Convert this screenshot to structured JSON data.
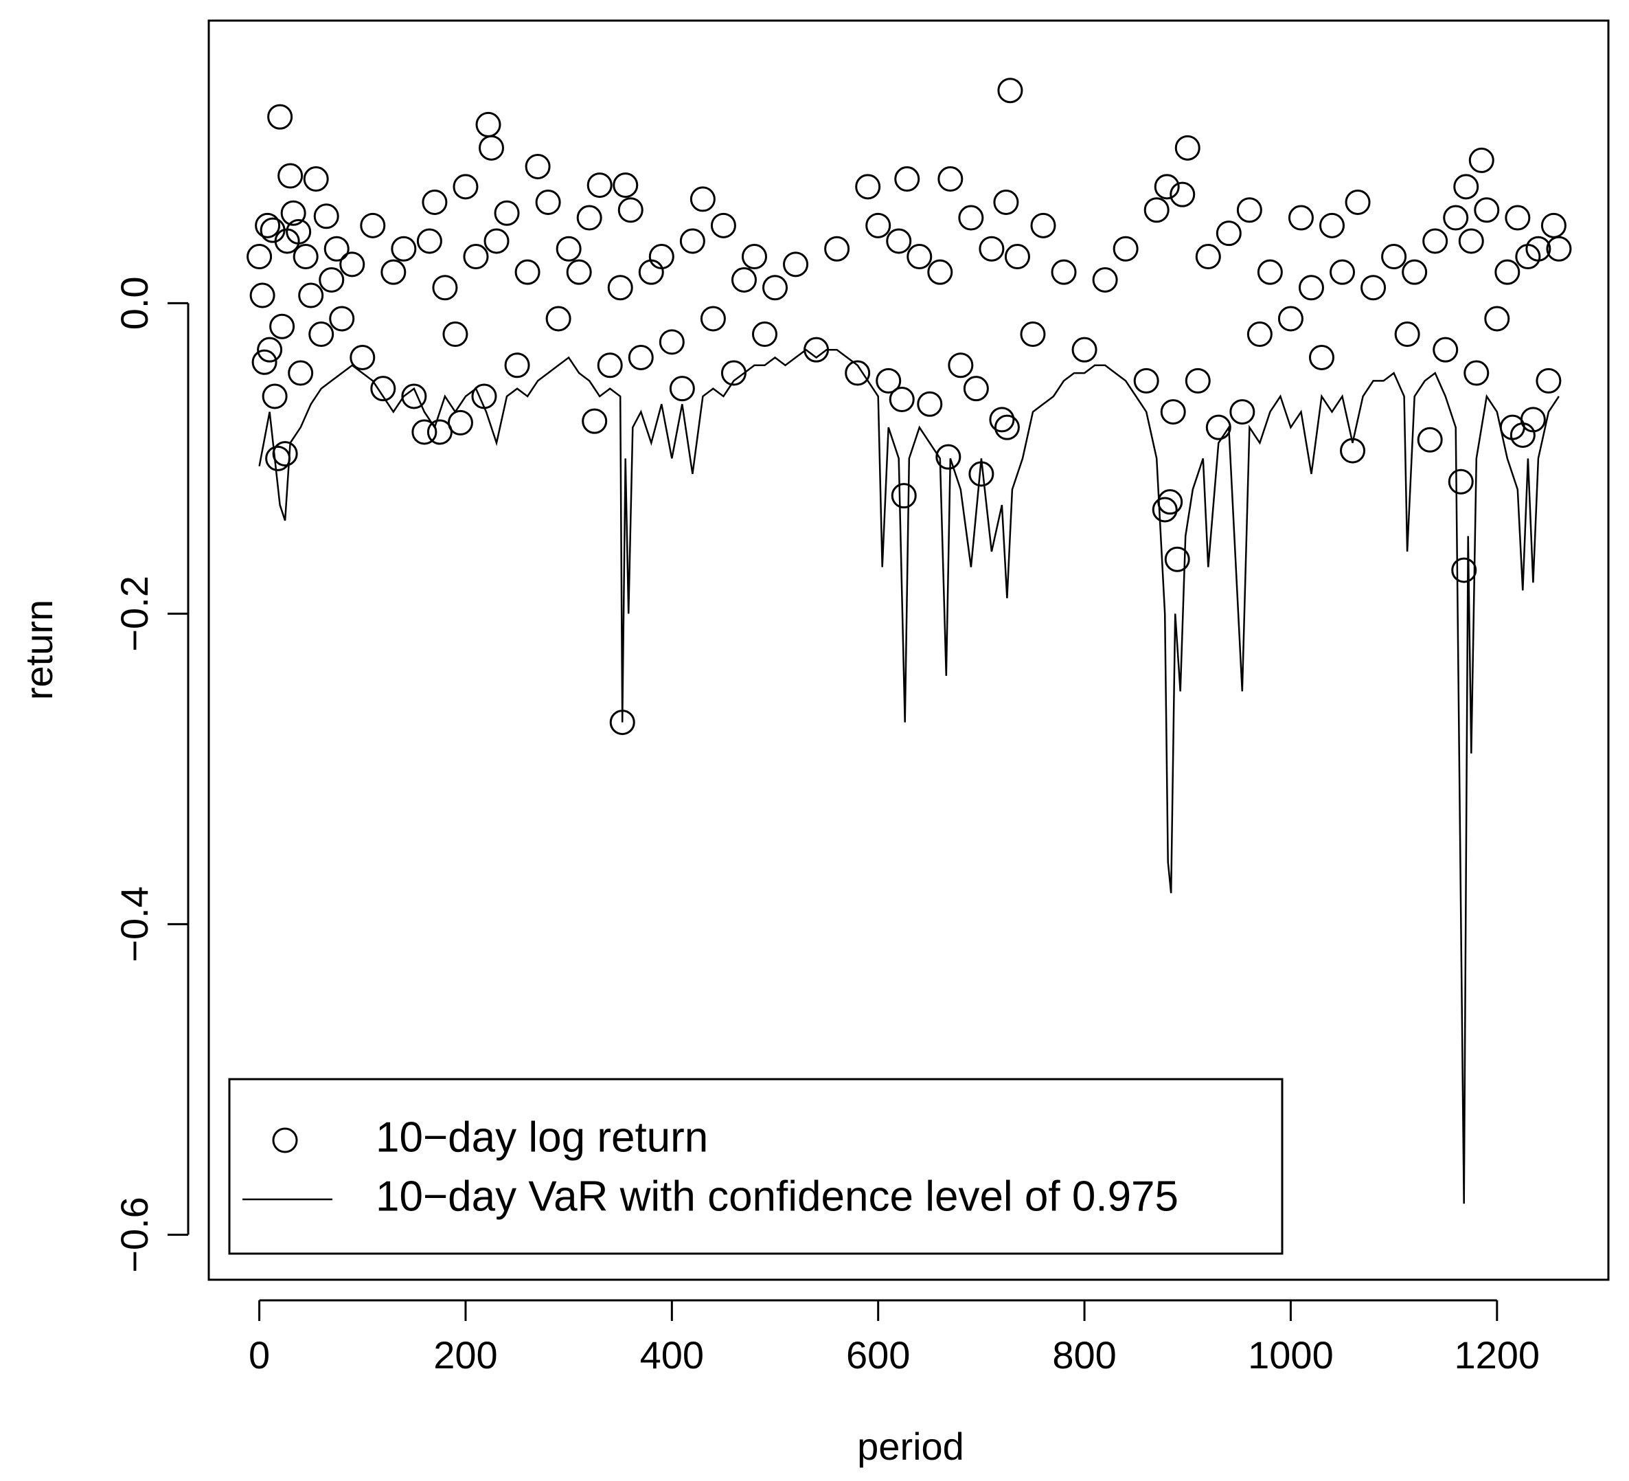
{
  "chart_data": {
    "type": "scatter",
    "xlabel": "period",
    "ylabel": "return",
    "xlim": [
      -49,
      1308
    ],
    "ylim": [
      -0.629,
      0.182
    ],
    "xticks": [
      0,
      200,
      400,
      600,
      800,
      1000,
      1200
    ],
    "yticks": [
      {
        "value": -0.6,
        "label": "−0.6"
      },
      {
        "value": -0.4,
        "label": "−0.4"
      },
      {
        "value": -0.2,
        "label": "−0.2"
      },
      {
        "value": 0,
        "label": "0.0"
      }
    ],
    "legend": "bottomleft",
    "series": [
      {
        "name": "10−day log return",
        "type": "scatter",
        "color": "#000000",
        "x": [
          0,
          3,
          5,
          8,
          10,
          13,
          15,
          18,
          20,
          22,
          25,
          27,
          30,
          33,
          38,
          40,
          45,
          50,
          55,
          60,
          65,
          70,
          75,
          80,
          90,
          100,
          110,
          120,
          130,
          140,
          150,
          160,
          165,
          170,
          175,
          180,
          190,
          195,
          200,
          210,
          218,
          222,
          225,
          230,
          240,
          250,
          260,
          270,
          280,
          290,
          300,
          310,
          320,
          325,
          330,
          340,
          350,
          352,
          355,
          360,
          370,
          380,
          390,
          400,
          410,
          420,
          430,
          440,
          450,
          460,
          470,
          480,
          490,
          500,
          520,
          540,
          560,
          580,
          590,
          600,
          610,
          620,
          623,
          625,
          628,
          640,
          650,
          660,
          668,
          670,
          680,
          690,
          695,
          700,
          710,
          720,
          724,
          725,
          728,
          735,
          750,
          760,
          780,
          800,
          820,
          840,
          860,
          870,
          878,
          880,
          883,
          886,
          890,
          895,
          900,
          910,
          920,
          930,
          940,
          953,
          960,
          970,
          980,
          1000,
          1010,
          1020,
          1030,
          1040,
          1050,
          1060,
          1065,
          1080,
          1100,
          1113,
          1120,
          1135,
          1140,
          1150,
          1160,
          1165,
          1168,
          1170,
          1175,
          1180,
          1185,
          1190,
          1200,
          1210,
          1215,
          1220,
          1225,
          1230,
          1235,
          1240,
          1250,
          1255,
          1260
        ],
        "values": [
          0.03,
          0.005,
          -0.038,
          0.05,
          -0.03,
          0.047,
          -0.06,
          -0.1,
          0.12,
          -0.015,
          -0.097,
          0.04,
          0.082,
          0.058,
          0.046,
          -0.045,
          0.03,
          0.005,
          0.08,
          -0.02,
          0.056,
          0.015,
          0.035,
          -0.01,
          0.025,
          -0.035,
          0.05,
          -0.055,
          0.02,
          0.035,
          -0.06,
          -0.083,
          0.04,
          0.065,
          -0.083,
          0.01,
          -0.02,
          -0.077,
          0.075,
          0.03,
          -0.06,
          0.115,
          0.1,
          0.04,
          0.058,
          -0.04,
          0.02,
          0.088,
          0.065,
          -0.01,
          0.035,
          0.02,
          0.055,
          -0.076,
          0.076,
          -0.04,
          0.01,
          -0.27,
          0.076,
          0.06,
          -0.035,
          0.02,
          0.03,
          -0.025,
          -0.055,
          0.04,
          0.067,
          -0.01,
          0.05,
          -0.045,
          0.015,
          0.03,
          -0.02,
          0.01,
          0.025,
          -0.03,
          0.035,
          -0.045,
          0.075,
          0.05,
          -0.05,
          0.04,
          -0.062,
          -0.124,
          0.08,
          0.03,
          -0.065,
          0.02,
          -0.099,
          0.08,
          -0.04,
          0.055,
          -0.055,
          -0.11,
          0.035,
          -0.075,
          0.065,
          -0.08,
          0.137,
          0.03,
          -0.02,
          0.05,
          0.02,
          -0.03,
          0.015,
          0.035,
          -0.05,
          0.06,
          -0.133,
          0.075,
          -0.128,
          -0.07,
          -0.165,
          0.07,
          0.1,
          -0.05,
          0.03,
          -0.08,
          0.045,
          -0.07,
          0.06,
          -0.02,
          0.02,
          -0.01,
          0.055,
          0.01,
          -0.035,
          0.05,
          0.02,
          -0.095,
          0.065,
          0.01,
          0.03,
          -0.02,
          0.02,
          -0.088,
          0.04,
          -0.03,
          0.055,
          -0.115,
          -0.172,
          0.075,
          0.04,
          -0.045,
          0.092,
          0.06,
          -0.01,
          0.02,
          -0.08,
          0.055,
          -0.085,
          0.03,
          -0.075,
          0.035,
          -0.05,
          0.05,
          0.035
        ]
      },
      {
        "name": "10−day VaR with confidence level of 0.975",
        "type": "line",
        "color": "#000000",
        "x": [
          0,
          10,
          20,
          25,
          30,
          40,
          50,
          60,
          70,
          80,
          90,
          100,
          110,
          120,
          130,
          140,
          150,
          160,
          170,
          180,
          190,
          200,
          210,
          220,
          230,
          240,
          250,
          260,
          270,
          280,
          290,
          300,
          310,
          320,
          330,
          340,
          350,
          352,
          355,
          358,
          362,
          370,
          380,
          390,
          400,
          410,
          420,
          430,
          440,
          450,
          460,
          470,
          480,
          490,
          500,
          510,
          520,
          530,
          540,
          550,
          560,
          570,
          580,
          590,
          600,
          604,
          610,
          620,
          626,
          630,
          640,
          650,
          660,
          666,
          670,
          680,
          690,
          700,
          710,
          720,
          725,
          730,
          740,
          750,
          760,
          770,
          780,
          790,
          800,
          810,
          820,
          830,
          840,
          850,
          860,
          870,
          878,
          881,
          884,
          888,
          893,
          898,
          905,
          915,
          920,
          930,
          940,
          953,
          960,
          970,
          980,
          990,
          1000,
          1010,
          1020,
          1030,
          1040,
          1050,
          1060,
          1070,
          1080,
          1090,
          1100,
          1110,
          1113,
          1120,
          1130,
          1140,
          1150,
          1160,
          1168,
          1172,
          1175,
          1180,
          1190,
          1200,
          1210,
          1220,
          1225,
          1230,
          1235,
          1240,
          1250,
          1260
        ],
        "values": [
          -0.105,
          -0.07,
          -0.13,
          -0.14,
          -0.09,
          -0.08,
          -0.065,
          -0.055,
          -0.05,
          -0.045,
          -0.04,
          -0.045,
          -0.05,
          -0.06,
          -0.07,
          -0.06,
          -0.055,
          -0.07,
          -0.08,
          -0.06,
          -0.07,
          -0.06,
          -0.055,
          -0.07,
          -0.09,
          -0.06,
          -0.055,
          -0.06,
          -0.05,
          -0.045,
          -0.04,
          -0.035,
          -0.045,
          -0.05,
          -0.06,
          -0.055,
          -0.06,
          -0.27,
          -0.1,
          -0.2,
          -0.08,
          -0.07,
          -0.09,
          -0.065,
          -0.1,
          -0.065,
          -0.11,
          -0.06,
          -0.055,
          -0.06,
          -0.05,
          -0.045,
          -0.04,
          -0.04,
          -0.035,
          -0.04,
          -0.035,
          -0.03,
          -0.035,
          -0.03,
          -0.03,
          -0.035,
          -0.04,
          -0.05,
          -0.06,
          -0.17,
          -0.08,
          -0.1,
          -0.27,
          -0.1,
          -0.08,
          -0.09,
          -0.1,
          -0.24,
          -0.1,
          -0.12,
          -0.17,
          -0.1,
          -0.16,
          -0.13,
          -0.19,
          -0.12,
          -0.1,
          -0.07,
          -0.065,
          -0.06,
          -0.05,
          -0.045,
          -0.045,
          -0.04,
          -0.04,
          -0.045,
          -0.05,
          -0.06,
          -0.07,
          -0.1,
          -0.2,
          -0.36,
          -0.38,
          -0.2,
          -0.25,
          -0.15,
          -0.12,
          -0.1,
          -0.17,
          -0.09,
          -0.08,
          -0.25,
          -0.08,
          -0.09,
          -0.07,
          -0.06,
          -0.08,
          -0.07,
          -0.11,
          -0.06,
          -0.07,
          -0.06,
          -0.09,
          -0.06,
          -0.05,
          -0.05,
          -0.045,
          -0.06,
          -0.16,
          -0.06,
          -0.05,
          -0.045,
          -0.06,
          -0.08,
          -0.58,
          -0.15,
          -0.29,
          -0.1,
          -0.06,
          -0.07,
          -0.1,
          -0.12,
          -0.185,
          -0.1,
          -0.18,
          -0.1,
          -0.07,
          -0.06
        ]
      }
    ]
  }
}
